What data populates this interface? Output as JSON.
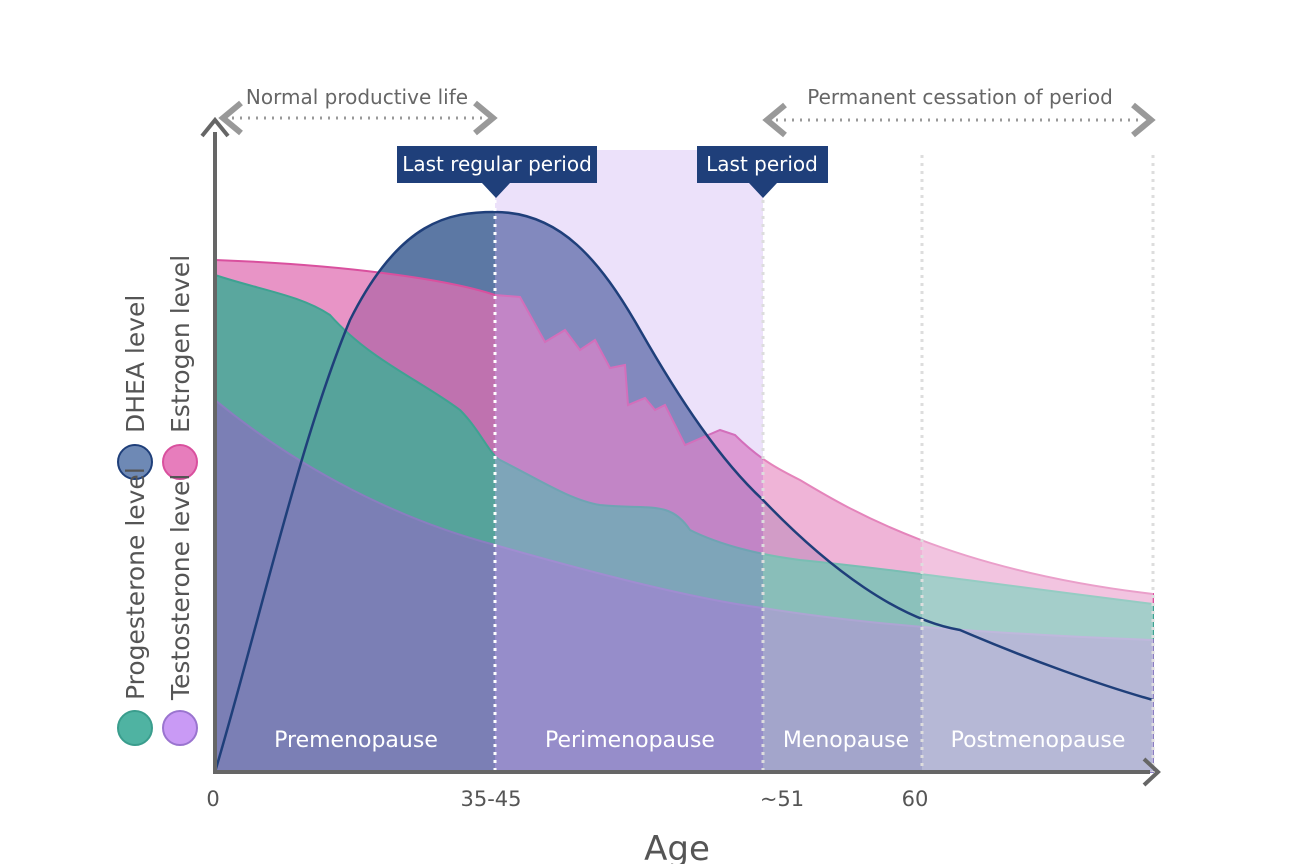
{
  "annotations": {
    "normal": "Normal productive life",
    "cessation": "Permanent cessation of period"
  },
  "markers": {
    "last_regular": "Last regular period",
    "last": "Last period"
  },
  "phases": [
    "Premenopause",
    "Perimenopause",
    "Menopause",
    "Postmenopause"
  ],
  "x_axis": {
    "title": "Age",
    "labels": [
      "0",
      "35-45",
      "~51",
      "60"
    ]
  },
  "legend": {
    "progesterone": "Progesterone level",
    "testosterone": "Testosterone level",
    "dhea": "DHEA level",
    "estrogen": "Estrogen level"
  }
}
